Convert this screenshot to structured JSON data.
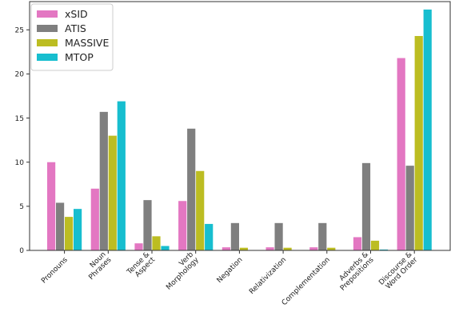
{
  "chart_data": {
    "type": "bar",
    "categories": [
      [
        "Pronouns"
      ],
      [
        "Noun",
        "Phrases"
      ],
      [
        "Tense &",
        "Aspect"
      ],
      [
        "Verb",
        "Morphology"
      ],
      [
        "Negation"
      ],
      [
        "Relativization"
      ],
      [
        "Complementation"
      ],
      [
        "Adverbs &",
        "Prepositions"
      ],
      [
        "Discourse &",
        "Word Order"
      ]
    ],
    "series": [
      {
        "name": "xSID",
        "color": "#e377c2",
        "values": [
          10.0,
          7.0,
          0.8,
          5.6,
          0.35,
          0.35,
          0.35,
          1.5,
          21.8
        ]
      },
      {
        "name": "ATIS",
        "color": "#7f7f7f",
        "values": [
          5.4,
          15.7,
          5.7,
          13.8,
          3.1,
          3.1,
          3.1,
          9.9,
          9.6
        ]
      },
      {
        "name": "MASSIVE",
        "color": "#bcbd22",
        "values": [
          3.8,
          13.0,
          1.6,
          9.0,
          0.3,
          0.3,
          0.3,
          1.1,
          24.3
        ]
      },
      {
        "name": "MTOP",
        "color": "#17becf",
        "values": [
          4.7,
          16.9,
          0.5,
          3.0,
          0.0,
          0.0,
          0.0,
          0.1,
          27.3
        ]
      }
    ],
    "yticks": [
      0,
      5,
      10,
      15,
      20,
      25
    ],
    "ylim": [
      0,
      28.2
    ],
    "xlabel": "",
    "ylabel": "",
    "legend": "top-left",
    "grid": false
  }
}
